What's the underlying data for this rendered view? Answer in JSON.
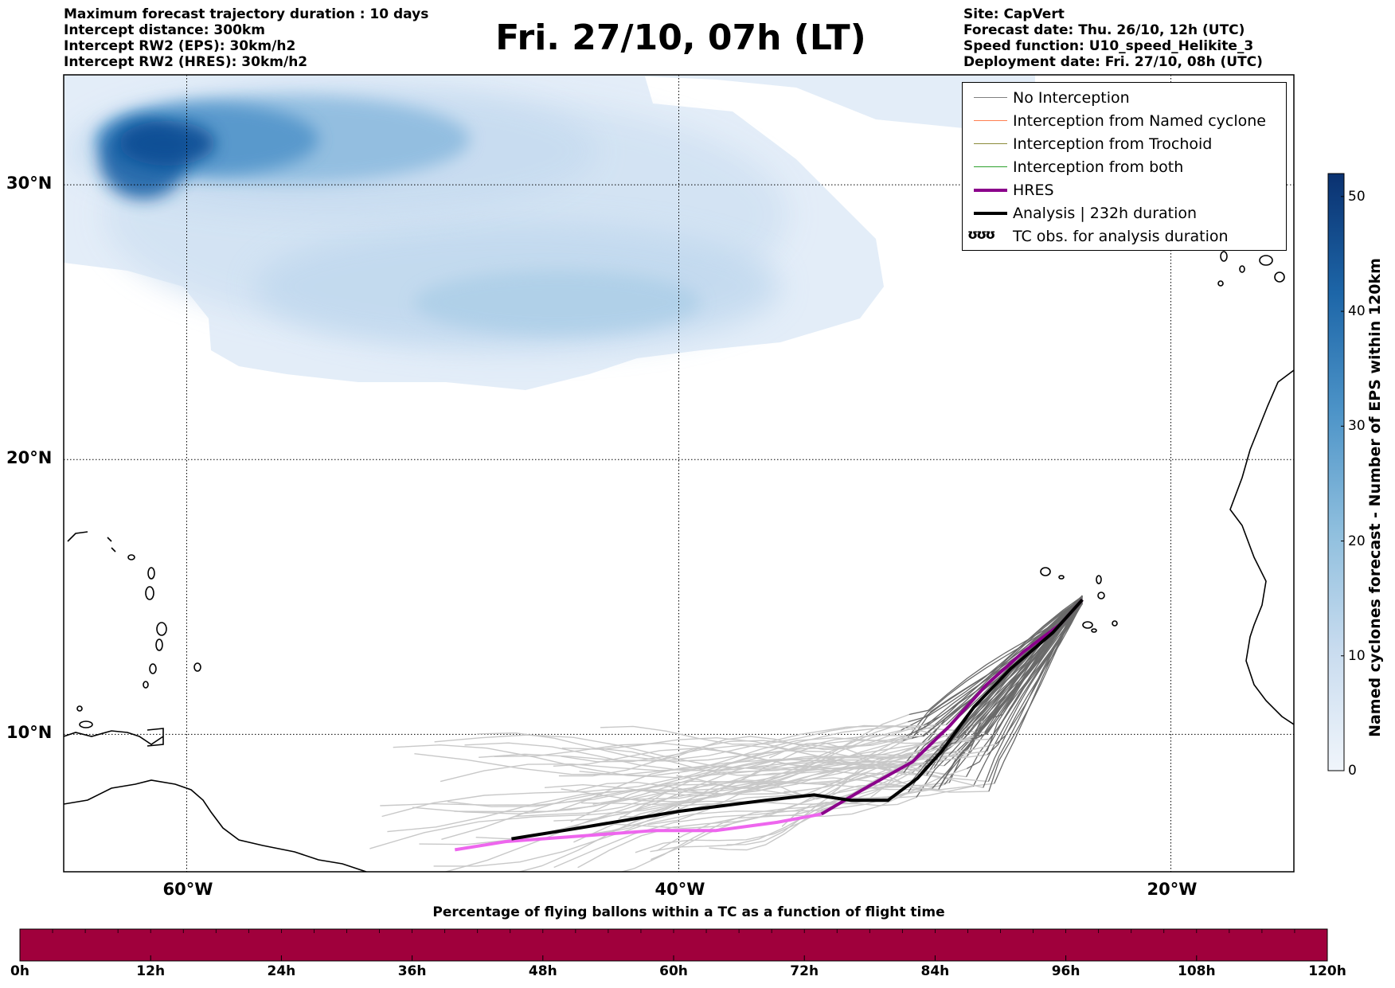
{
  "header_left": [
    "Maximum forecast trajectory duration : 10 days",
    "Intercept distance: 300km",
    "Intercept RW2 (EPS):  30km/h2",
    "Intercept RW2 (HRES): 30km/h2"
  ],
  "header_right": [
    "Site: CapVert",
    "Forecast date: Thu. 26/10, 12h (UTC)",
    "Speed function: U10_speed_Helikite_3",
    "Deployment date: Fri. 27/10, 08h (UTC)"
  ],
  "title": "Fri. 27/10, 07h (LT)",
  "map": {
    "lon_range": [
      -65,
      -15
    ],
    "lat_range": [
      5,
      34
    ],
    "lat_ticks": [
      {
        "value": 30,
        "label": "30°N"
      },
      {
        "value": 20,
        "label": "20°N"
      },
      {
        "value": 10,
        "label": "10°N"
      }
    ],
    "lon_ticks": [
      {
        "value": -60,
        "label": "60°W"
      },
      {
        "value": -40,
        "label": "40°W"
      },
      {
        "value": -20,
        "label": "20°W"
      }
    ],
    "gridlines": "dotted",
    "launch_site": {
      "lon": -23.6,
      "lat": 14.9
    }
  },
  "legend": {
    "placement": "top-right",
    "entries": [
      {
        "label": "No Interception",
        "color": "#808080"
      },
      {
        "label": "Interception from Named cyclone",
        "color": "#ff7f50"
      },
      {
        "label": "Interception from Trochoid",
        "color": "#8b8b3a"
      },
      {
        "label": "Interception from both",
        "color": "#2ca02c"
      },
      {
        "label": "HRES",
        "color": "#8b008b"
      },
      {
        "label": "Analysis | 232h duration",
        "color": "#000000"
      },
      {
        "label": "TC obs. for analysis duration",
        "symbol": "ʊʊʊ"
      }
    ]
  },
  "colorbar": {
    "label": "Named cyclones forecast - Number of EPS within 120km",
    "ticks": [
      "0",
      "10",
      "20",
      "30",
      "40",
      "50"
    ],
    "min": 0,
    "max": 52,
    "color_low": "#e3edf8",
    "color_high": "#0b3474"
  },
  "bottom_bar": {
    "label": "Percentage of flying ballons within a TC as a function of flight time",
    "ticks": [
      "0h",
      "12h",
      "24h",
      "36h",
      "48h",
      "60h",
      "72h",
      "84h",
      "96h",
      "108h",
      "120h"
    ],
    "color": "#a0003c"
  },
  "tracks": {
    "analysis": [
      [
        -46.8,
        6.2
      ],
      [
        -44,
        6.6
      ],
      [
        -40,
        7.2
      ],
      [
        -36.5,
        7.6
      ],
      [
        -34.5,
        7.8
      ],
      [
        -33,
        7.6
      ],
      [
        -31.5,
        7.6
      ],
      [
        -30.3,
        8.4
      ],
      [
        -29.3,
        9.4
      ],
      [
        -28,
        11
      ],
      [
        -26.5,
        12.4
      ],
      [
        -24.8,
        13.7
      ],
      [
        -23.6,
        14.9
      ]
    ],
    "hres": [
      [
        -49.1,
        5.8
      ],
      [
        -47,
        6.1
      ],
      [
        -44,
        6.3
      ],
      [
        -41,
        6.5
      ],
      [
        -38.5,
        6.5
      ],
      [
        -36,
        6.8
      ],
      [
        -34.2,
        7.1
      ],
      [
        -32.5,
        8.0
      ],
      [
        -30.5,
        9.0
      ],
      [
        -29,
        10.3
      ],
      [
        -27.5,
        11.8
      ],
      [
        -26,
        13.0
      ],
      [
        -24.5,
        14.0
      ],
      [
        -23.6,
        14.9
      ]
    ]
  }
}
